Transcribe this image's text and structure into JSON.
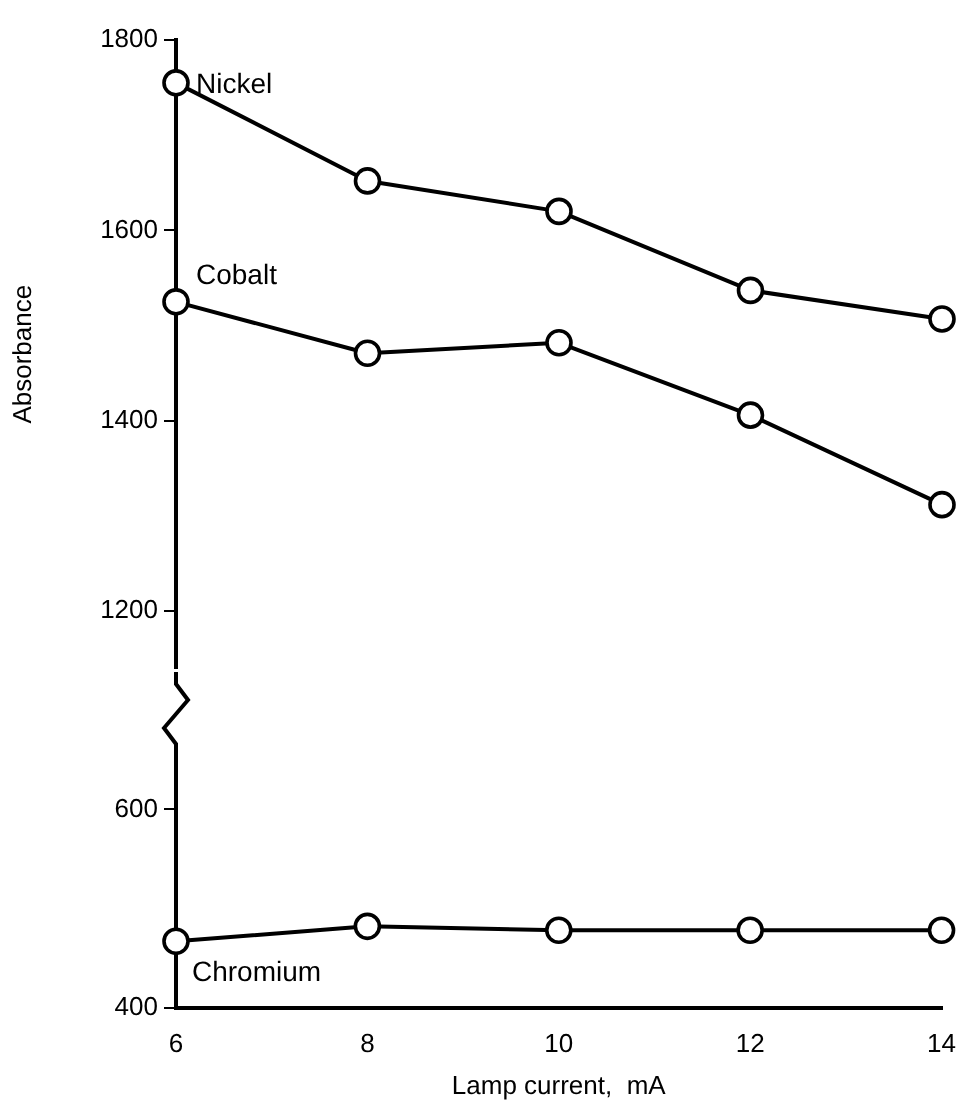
{
  "chart_data": [
    {
      "type": "line",
      "ylabel": "Absorbance",
      "x": [
        6,
        8,
        10,
        12,
        14
      ],
      "xlim": [
        6,
        14
      ],
      "ylim": [
        1140,
        1800
      ],
      "yticks": [
        1200,
        1400,
        1600,
        1800
      ],
      "tick_labels": "y",
      "grid": false,
      "legend": false,
      "marker": "circle",
      "line_style": "solid",
      "series": [
        {
          "name": "Nickel",
          "color": "#000000",
          "values": [
            1755,
            1652,
            1620,
            1537,
            1507
          ]
        },
        {
          "name": "Cobalt",
          "color": "#000000",
          "values": [
            1525,
            1471,
            1482,
            1406,
            1312
          ]
        }
      ]
    },
    {
      "type": "line",
      "xlabel": "Lamp current,  mA",
      "x": [
        6,
        8,
        10,
        12,
        14
      ],
      "xlim": [
        6,
        14
      ],
      "xticks": [
        6,
        8,
        10,
        12,
        14
      ],
      "ylim": [
        400,
        660
      ],
      "yticks": [
        400,
        600
      ],
      "grid": false,
      "legend": false,
      "marker": "circle",
      "line_style": "solid",
      "series": [
        {
          "name": "Chromium",
          "color": "#000000",
          "values": [
            467,
            482,
            478,
            478,
            478
          ]
        }
      ]
    }
  ]
}
